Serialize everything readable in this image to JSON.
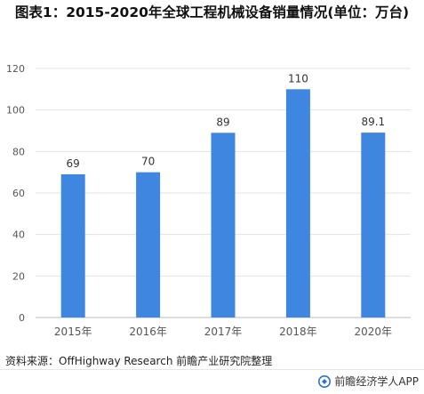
{
  "header": {
    "title": "图表1：2015-2020年全球工程机械设备销量情况(单位：万台)"
  },
  "chart_data": {
    "type": "bar",
    "title": "图表1：2015-2020年全球工程机械设备销量情况(单位：万台)",
    "categories": [
      "2015年",
      "2016年",
      "2017年",
      "2018年",
      "2020年"
    ],
    "values": [
      69,
      70,
      89,
      110,
      89.1
    ],
    "data_labels": [
      "69",
      "70",
      "89",
      "110",
      "89.1"
    ],
    "yticks": [
      "0",
      "20",
      "40",
      "60",
      "80",
      "100",
      "120"
    ],
    "ylim": [
      0,
      120
    ],
    "xlabel": "",
    "ylabel": "",
    "grid": true,
    "legend": "none",
    "colors": {
      "bar": "#3f86e0",
      "grid": "#e3e3e3",
      "axis_text": "#555555",
      "label_text": "#333333"
    }
  },
  "footer": {
    "source": "资料来源：OffHighway Research 前瞻产业研究院整理",
    "brand": "前瞻经济学人APP",
    "brand_icon": "qianzhan-logo-icon"
  }
}
